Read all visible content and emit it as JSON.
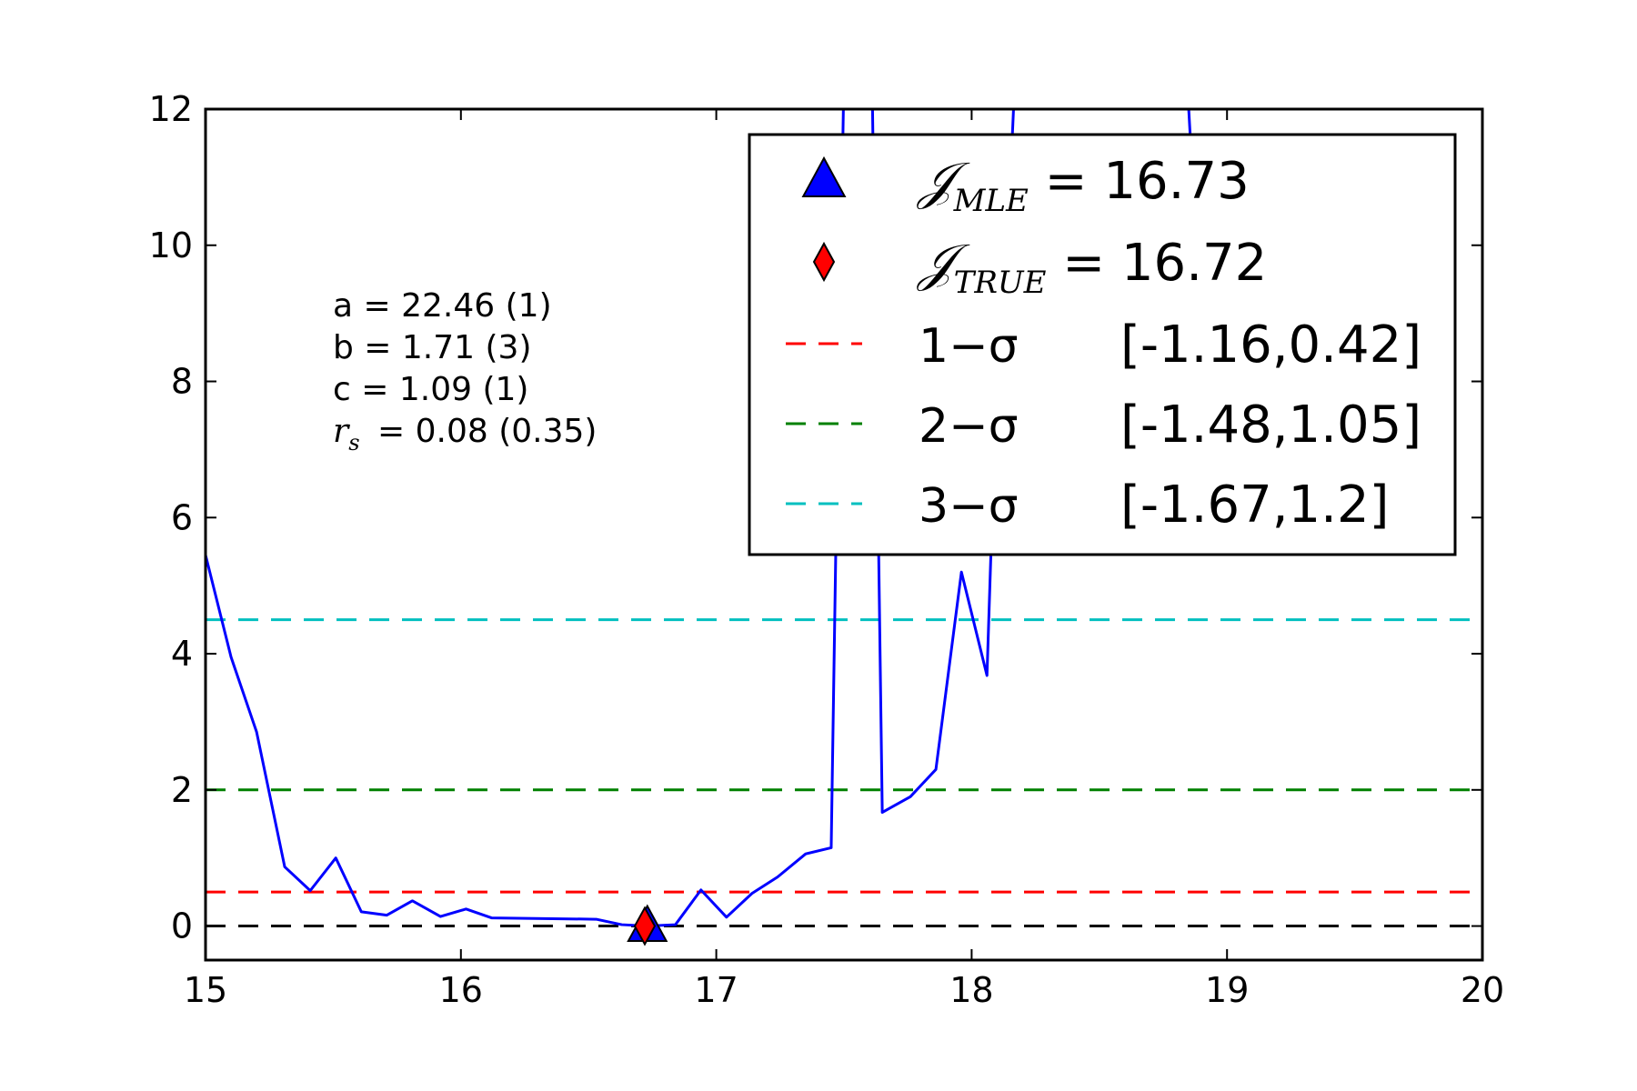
{
  "chart_data": {
    "type": "line",
    "xlim": [
      15,
      20
    ],
    "ylim": [
      -0.5,
      12
    ],
    "xticks": [
      "15",
      "16",
      "17",
      "18",
      "19",
      "20"
    ],
    "yticks": [
      "0",
      "2",
      "4",
      "6",
      "8",
      "10",
      "12"
    ],
    "grid": false,
    "legend_position": "top-right",
    "series": [
      {
        "color": "#0000ff",
        "x": [
          15.0,
          15.1,
          15.2,
          15.31,
          15.41,
          15.51,
          15.61,
          15.71,
          15.81,
          15.92,
          16.02,
          16.12,
          16.53,
          16.63,
          16.73,
          16.84,
          16.94,
          17.04,
          17.14,
          17.24,
          17.35,
          17.45,
          17.47,
          17.5,
          17.61,
          17.65,
          17.76,
          17.86,
          17.96,
          18.06,
          18.08,
          18.12,
          18.14,
          18.17,
          18.29,
          18.33,
          18.47,
          18.6,
          18.8,
          18.85,
          18.88,
          18.92
        ],
        "y": [
          5.45,
          3.95,
          2.85,
          0.87,
          0.52,
          1.0,
          0.21,
          0.16,
          0.37,
          0.14,
          0.25,
          0.12,
          0.1,
          0.02,
          0.0,
          0.02,
          0.53,
          0.13,
          0.48,
          0.72,
          1.06,
          1.15,
          6.0,
          12.5,
          12.5,
          1.67,
          1.9,
          2.3,
          5.2,
          3.68,
          6.0,
          8.0,
          10.0,
          12.5,
          12.5,
          12.5,
          12.5,
          12.5,
          12.5,
          12.0,
          10.0,
          8.0
        ]
      }
    ],
    "hlines": [
      {
        "y": 0,
        "color": "#000000",
        "style": "dashed"
      },
      {
        "y": 0.5,
        "color": "#ff0000",
        "style": "dashed"
      },
      {
        "y": 2.0,
        "color": "#008000",
        "style": "dashed"
      },
      {
        "y": 4.5,
        "color": "#00bfbf",
        "style": "dashed"
      }
    ],
    "markers": [
      {
        "x": 16.73,
        "y": 0,
        "shape": "triangle",
        "color": "#0000ff"
      },
      {
        "x": 16.72,
        "y": 0,
        "shape": "diamond",
        "color": "#ff0000"
      }
    ],
    "annotation_lines": [
      {
        "text": "a = 22.46 (1)"
      },
      {
        "text": "b = 1.71 (3)"
      },
      {
        "text": "c = 1.09 (1)"
      },
      {
        "symbol": "r",
        "sub": "s",
        "text": " = 0.08 (0.35)"
      }
    ],
    "legend": [
      {
        "kind": "triangle",
        "color": "#0000ff",
        "symbol": "𝒥",
        "sub": "MLE",
        "value": " = 16.73"
      },
      {
        "kind": "diamond",
        "color": "#ff0000",
        "symbol": "𝒥",
        "sub": "TRUE",
        "value": " = 16.72"
      },
      {
        "kind": "dash",
        "color": "#ff0000",
        "label": "1−σ",
        "interval": "[-1.16,0.42]"
      },
      {
        "kind": "dash",
        "color": "#008000",
        "label": "2−σ",
        "interval": "[-1.48,1.05]"
      },
      {
        "kind": "dash",
        "color": "#00bfbf",
        "label": "3−σ",
        "interval": "[-1.67,1.2]"
      }
    ]
  }
}
